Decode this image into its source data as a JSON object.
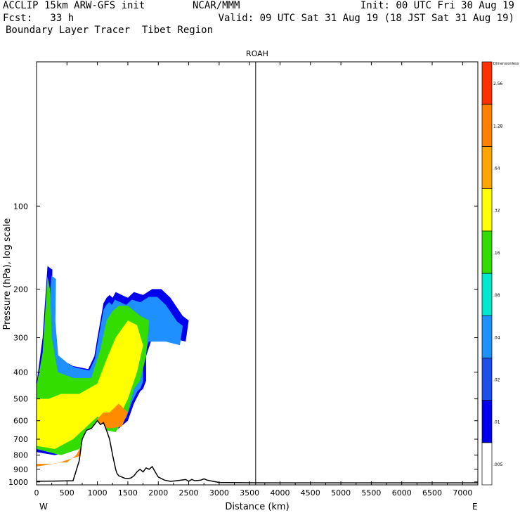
{
  "header": {
    "line1_left": "ACCLIP 15km ARW-GFS init",
    "line1_center": "NCAR/MMM",
    "line1_right": "Init: 00 UTC Fri 30 Aug 19",
    "line2_left": "Fcst:   33 h",
    "line2_right": "Valid: 09 UTC Sat 31 Aug 19 (18 JST Sat 31 Aug 19)",
    "line3_left": "Boundary Layer Tracer  Tibet Region"
  },
  "chart_data": {
    "type": "area",
    "title": "ROAH",
    "xlabel": "Distance (km)",
    "ylabel": "Pressure (hPa), log scale",
    "x_end_labels": [
      "W",
      "E"
    ],
    "xlim": [
      0,
      7250
    ],
    "ylim": [
      1025,
      30
    ],
    "y_log_scale": true,
    "x_ticks": [
      0,
      500,
      1000,
      1500,
      2000,
      2500,
      3000,
      3500,
      4000,
      4500,
      5000,
      5500,
      6000,
      6500,
      7000
    ],
    "y_ticks": [
      100,
      200,
      300,
      400,
      500,
      600,
      700,
      800,
      900,
      1000
    ],
    "vertical_marker_km": 3600,
    "colorbar": {
      "unit_label": "Dimensionless",
      "levels": [
        ".005",
        ".01",
        ".02",
        ".04",
        ".08",
        ".16",
        ".32",
        ".64",
        "1.28",
        "2.56"
      ],
      "colors": [
        "#ffffff",
        "#0000ee",
        "#1e4fe6",
        "#1e90ff",
        "#00e8d0",
        "#33dd00",
        "#ffff00",
        "#ffa500",
        "#ff7f00",
        "#ff3000"
      ]
    },
    "terrain_profile": {
      "x": [
        0,
        300,
        600,
        700,
        750,
        820,
        900,
        1000,
        1050,
        1100,
        1150,
        1200,
        1250,
        1300,
        1320,
        1350,
        1400,
        1450,
        1500,
        1550,
        1600,
        1650,
        1700,
        1750,
        1800,
        1850,
        1900,
        1950,
        2000,
        2100,
        2200,
        2300,
        2450,
        2500,
        2550,
        2600,
        2700,
        2750,
        2800,
        2850,
        2950,
        3000,
        3500,
        4000,
        5000,
        6000,
        7000,
        7250
      ],
      "pressure": [
        995,
        993,
        990,
        840,
        700,
        650,
        640,
        600,
        620,
        610,
        650,
        700,
        800,
        900,
        930,
        950,
        960,
        970,
        972,
        968,
        950,
        920,
        900,
        920,
        890,
        900,
        880,
        920,
        960,
        985,
        995,
        990,
        980,
        995,
        980,
        990,
        985,
        975,
        985,
        990,
        1000,
        1005,
        1007,
        1008,
        1008,
        1008,
        1008,
        1008
      ]
    },
    "tracer_field": {
      "description_levels": [
        "outer (>.01)",
        "green (>.16)",
        "yellow (>.32)",
        "orange (>.64)"
      ],
      "regions": [
        {
          "level": ".01",
          "x": [
            0,
            100,
            180,
            260,
            250,
            300,
            500,
            600,
            850,
            950,
            1000,
            1050,
            1100,
            1150,
            1200,
            1250,
            1300,
            1400,
            1500,
            1600,
            1750,
            1900,
            2050,
            2200,
            2400,
            2500,
            2450,
            2200,
            1900,
            1800,
            1800,
            1750,
            1700,
            1600,
            1500,
            1350,
            1000,
            700,
            500,
            300,
            0
          ],
          "pressure": [
            440,
            300,
            165,
            170,
            250,
            340,
            370,
            380,
            390,
            350,
            300,
            260,
            225,
            215,
            210,
            215,
            205,
            210,
            215,
            205,
            210,
            200,
            200,
            215,
            250,
            260,
            310,
            300,
            300,
            350,
            430,
            460,
            470,
            520,
            600,
            640,
            620,
            740,
            780,
            800,
            780
          ]
        },
        {
          "level": ".16",
          "x": [
            0,
            100,
            180,
            220,
            250,
            350,
            600,
            900,
            1050,
            1150,
            1250,
            1350,
            1500,
            1700,
            1850,
            1800,
            1700,
            1600,
            1500,
            1300,
            1000,
            700,
            400,
            0
          ],
          "pressure": [
            450,
            340,
            180,
            200,
            300,
            400,
            420,
            420,
            330,
            260,
            240,
            230,
            230,
            250,
            260,
            350,
            430,
            460,
            560,
            660,
            640,
            760,
            800,
            760
          ]
        },
        {
          "level": ".32",
          "x": [
            0,
            200,
            400,
            700,
            1000,
            1150,
            1300,
            1500,
            1650,
            1750,
            1650,
            1500,
            1300,
            1000,
            600,
            300,
            0
          ],
          "pressure": [
            500,
            500,
            480,
            480,
            440,
            360,
            300,
            260,
            270,
            320,
            400,
            500,
            620,
            580,
            700,
            760,
            740
          ]
        },
        {
          "level": ".64",
          "x": [
            0,
            300,
            600,
            750,
            900,
            1000,
            1100,
            1200,
            1350,
            1500,
            1400,
            1200,
            1000,
            800,
            650,
            500,
            400,
            0
          ],
          "pressure": [
            860,
            860,
            820,
            800,
            680,
            590,
            560,
            560,
            520,
            560,
            630,
            640,
            620,
            700,
            800,
            850,
            850,
            880
          ]
        }
      ]
    }
  }
}
